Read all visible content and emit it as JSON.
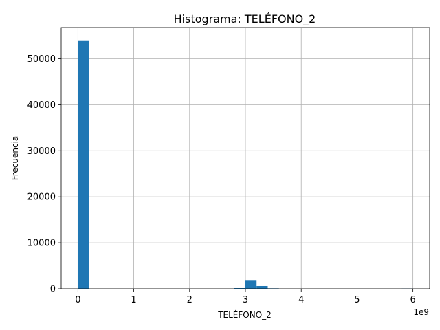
{
  "chart_data": {
    "type": "bar",
    "title": "Histograma: TELÉFONO_2",
    "xlabel": "TELÉFONO_2",
    "ylabel": "Frecuencia",
    "offset_label": "1e9",
    "bar_color": "#1f77b4",
    "grid": true,
    "xlim": [
      -0.3,
      6.3
    ],
    "ylim": [
      0,
      56800
    ],
    "x_ticks": [
      0,
      1,
      2,
      3,
      4,
      5,
      6
    ],
    "x_tick_labels": [
      "0",
      "1",
      "2",
      "3",
      "4",
      "5",
      "6"
    ],
    "y_ticks": [
      0,
      10000,
      20000,
      30000,
      40000,
      50000
    ],
    "y_tick_labels": [
      "0",
      "10000",
      "20000",
      "30000",
      "40000",
      "50000"
    ],
    "bins": [
      {
        "x0": 0.0,
        "x1": 0.2,
        "count": 54000
      },
      {
        "x0": 2.8,
        "x1": 3.0,
        "count": 150
      },
      {
        "x0": 3.0,
        "x1": 3.2,
        "count": 1900
      },
      {
        "x0": 3.2,
        "x1": 3.4,
        "count": 600
      },
      {
        "x0": 3.4,
        "x1": 3.6,
        "count": 100
      },
      {
        "x0": 5.8,
        "x1": 6.0,
        "count": 60
      }
    ]
  }
}
